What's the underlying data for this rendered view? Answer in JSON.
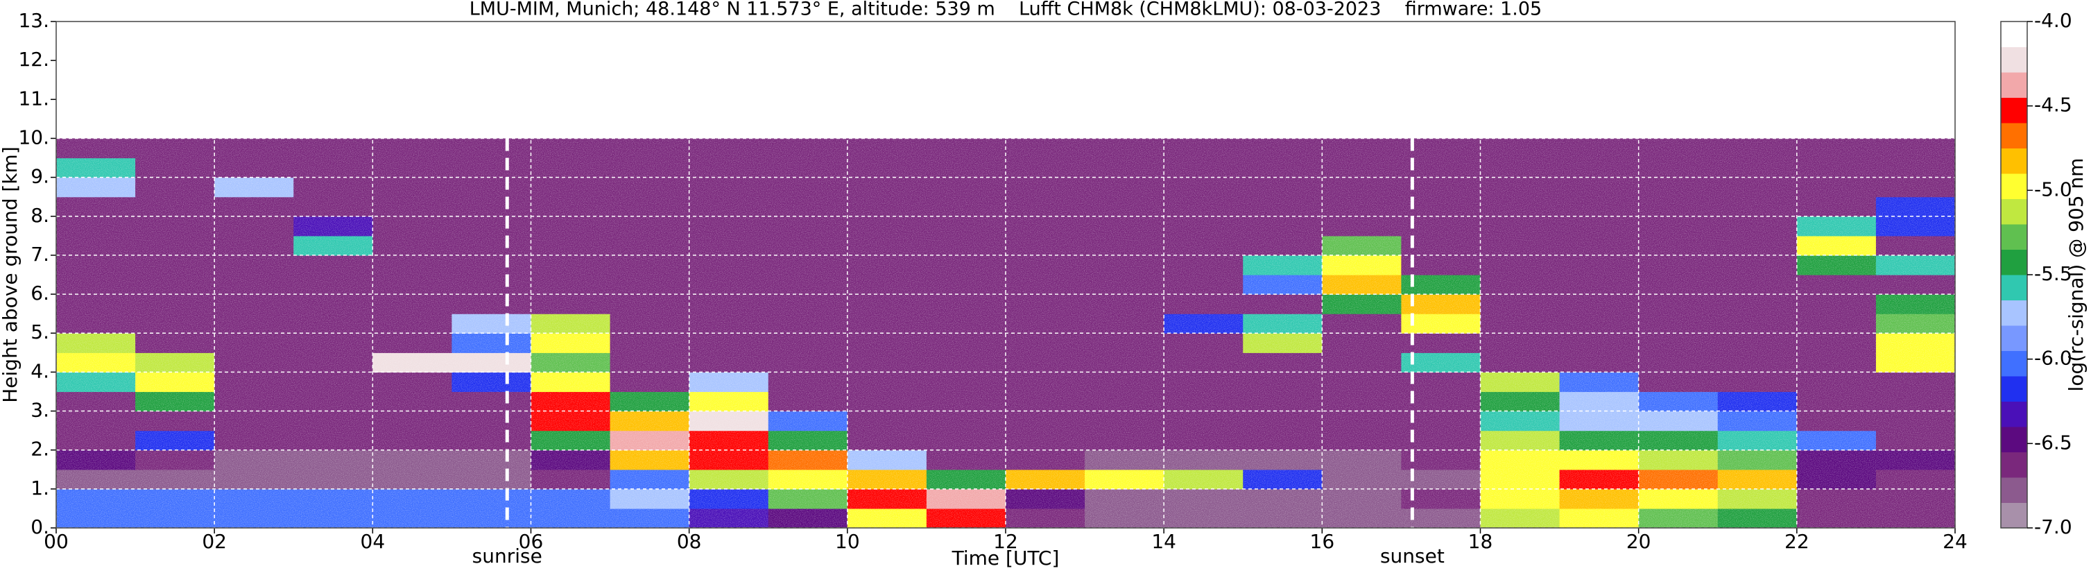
{
  "chart_data": {
    "type": "heatmap",
    "title": "LMU-MIM, Munich; 48.148° N 11.573° E, altitude: 539 m    Lufft CHM8k (CHM8kLMU): 08-03-2023    firmware: 1.05",
    "xlabel": "Time [UTC]",
    "ylabel": "Height above ground [km]",
    "colorbar_label": "log(rc-signal) @ 905 nm",
    "xlim": [
      0,
      24
    ],
    "ylim": [
      0,
      13
    ],
    "xticks": [
      {
        "value": 0,
        "label": "00"
      },
      {
        "value": 2,
        "label": "02"
      },
      {
        "value": 4,
        "label": "04"
      },
      {
        "value": 6,
        "label": "06"
      },
      {
        "value": 8,
        "label": "08"
      },
      10,
      12,
      14,
      16,
      18,
      20,
      22,
      24
    ],
    "yticks": [
      {
        "value": 0,
        "label": "0."
      },
      {
        "value": 1,
        "label": "1."
      },
      {
        "value": 2,
        "label": "2."
      },
      {
        "value": 3,
        "label": "3."
      },
      {
        "value": 4,
        "label": "4."
      },
      {
        "value": 5,
        "label": "5."
      },
      {
        "value": 6,
        "label": "6."
      },
      {
        "value": 7,
        "label": "7."
      },
      {
        "value": 8,
        "label": "8."
      },
      {
        "value": 9,
        "label": "9."
      },
      {
        "value": 10,
        "label": "10."
      },
      {
        "value": 11,
        "label": "11."
      },
      {
        "value": 12,
        "label": "12."
      },
      {
        "value": 13,
        "label": "13."
      }
    ],
    "grid": true,
    "x_edges": [
      0,
      1,
      2,
      3,
      4,
      5,
      6,
      7,
      8,
      9,
      10,
      11,
      12,
      13,
      14,
      15,
      16,
      17,
      18,
      19,
      20,
      21,
      22,
      23,
      24
    ],
    "y_edges": [
      0,
      0.5,
      1,
      1.5,
      2,
      2.5,
      3,
      3.5,
      4,
      4.5,
      5,
      5.5,
      6,
      6.5,
      7,
      7.5,
      8,
      8.5,
      9,
      9.5,
      10
    ],
    "z": [
      [
        -6.0,
        -6.0,
        -6.0,
        -6.0,
        -6.0,
        -6.0,
        -6.0,
        -6.0,
        -6.3,
        -6.4,
        -5.0,
        -4.6,
        -6.6,
        -6.7,
        -6.7,
        -6.7,
        -6.7,
        -6.7,
        -5.2,
        -5.0,
        -5.3,
        -5.5,
        -6.6,
        -6.6
      ],
      [
        -6.1,
        -6.1,
        -6.1,
        -6.1,
        -6.1,
        -6.1,
        -6.1,
        -5.8,
        -6.2,
        -5.3,
        -4.6,
        -4.4,
        -6.5,
        -6.7,
        -6.7,
        -6.7,
        -6.7,
        -6.6,
        -5.0,
        -4.8,
        -5.0,
        -5.2,
        -6.6,
        -6.6
      ],
      [
        -6.8,
        -6.8,
        -6.8,
        -6.8,
        -6.8,
        -6.8,
        -6.6,
        -6.0,
        -5.2,
        -5.0,
        -4.8,
        -5.4,
        -4.8,
        -4.9,
        -5.2,
        -6.2,
        -6.7,
        -6.7,
        -4.9,
        -4.6,
        -4.7,
        -4.8,
        -6.5,
        -6.6
      ],
      [
        -6.5,
        -6.6,
        -6.8,
        -6.8,
        -6.8,
        -6.8,
        -6.5,
        -4.8,
        -4.6,
        -4.7,
        -5.8,
        -6.6,
        -6.6,
        -6.7,
        -6.7,
        -6.7,
        -6.7,
        -6.6,
        -5.0,
        -4.9,
        -5.2,
        -5.3,
        -6.5,
        -6.4
      ],
      [
        -6.6,
        -6.2,
        -6.6,
        -6.6,
        -6.6,
        -6.6,
        -5.5,
        -4.4,
        -4.5,
        -5.5,
        -6.6,
        -6.6,
        -6.6,
        -6.6,
        -6.6,
        -6.6,
        -6.6,
        -6.6,
        -5.2,
        -5.4,
        -5.5,
        -5.6,
        -6.0,
        -6.6
      ],
      [
        -6.6,
        -6.6,
        -6.6,
        -6.6,
        -6.6,
        -6.6,
        -4.6,
        -4.8,
        -4.3,
        -6.0,
        -6.6,
        -6.6,
        -6.6,
        -6.6,
        -6.6,
        -6.6,
        -6.6,
        -6.6,
        -5.6,
        -5.7,
        -5.8,
        -6.0,
        -6.6,
        -6.6
      ],
      [
        -6.6,
        -5.5,
        -6.6,
        -6.6,
        -6.6,
        -6.6,
        -4.5,
        -5.5,
        -5.0,
        -6.6,
        -6.6,
        -6.6,
        -6.6,
        -6.6,
        -6.6,
        -6.6,
        -6.6,
        -6.6,
        -5.4,
        -5.8,
        -6.0,
        -6.2,
        -6.6,
        -6.6
      ],
      [
        -5.6,
        -5.0,
        -6.6,
        -6.6,
        -6.6,
        -6.2,
        -5.0,
        -6.6,
        -5.8,
        -6.6,
        -6.6,
        -6.6,
        -6.6,
        -6.6,
        -6.6,
        -6.6,
        -6.6,
        -6.6,
        -5.2,
        -6.0,
        -6.6,
        -6.6,
        -6.6,
        -6.6
      ],
      [
        -5.0,
        -5.2,
        -6.6,
        -6.6,
        -4.3,
        -4.3,
        -5.3,
        -6.6,
        -6.6,
        -6.6,
        -6.6,
        -6.6,
        -6.6,
        -6.6,
        -6.6,
        -6.6,
        -6.6,
        -5.6,
        -6.6,
        -6.6,
        -6.6,
        -6.6,
        -6.6,
        -5.0
      ],
      [
        -5.2,
        -6.6,
        -6.6,
        -6.6,
        -6.6,
        -6.0,
        -5.0,
        -6.6,
        -6.6,
        -6.6,
        -6.6,
        -6.6,
        -6.6,
        -6.6,
        -6.6,
        -5.2,
        -6.6,
        -6.6,
        -6.6,
        -6.6,
        -6.6,
        -6.6,
        -6.6,
        -5.0
      ],
      [
        -6.6,
        -6.6,
        -6.6,
        -6.6,
        -6.6,
        -5.8,
        -5.2,
        -6.6,
        -6.6,
        -6.6,
        -6.6,
        -6.6,
        -6.6,
        -6.6,
        -6.2,
        -5.6,
        -6.6,
        -5.0,
        -6.6,
        -6.6,
        -6.6,
        -6.6,
        -6.6,
        -5.3
      ],
      [
        -6.6,
        -6.6,
        -6.6,
        -6.6,
        -6.6,
        -6.6,
        -6.6,
        -6.6,
        -6.6,
        -6.6,
        -6.6,
        -6.6,
        -6.6,
        -6.6,
        -6.6,
        -6.6,
        -5.4,
        -4.8,
        -6.6,
        -6.6,
        -6.6,
        -6.6,
        -6.6,
        -5.5
      ],
      [
        -6.6,
        -6.6,
        -6.6,
        -6.6,
        -6.6,
        -6.6,
        -6.6,
        -6.6,
        -6.6,
        -6.6,
        -6.6,
        -6.6,
        -6.6,
        -6.6,
        -6.6,
        -6.0,
        -4.8,
        -5.4,
        -6.6,
        -6.6,
        -6.6,
        -6.6,
        -6.6,
        -6.6
      ],
      [
        -6.6,
        -6.6,
        -6.6,
        -6.6,
        -6.6,
        -6.6,
        -6.6,
        -6.6,
        -6.6,
        -6.6,
        -6.6,
        -6.6,
        -6.6,
        -6.6,
        -6.6,
        -5.6,
        -4.9,
        -6.6,
        -6.6,
        -6.6,
        -6.6,
        -6.6,
        -5.4,
        -5.6
      ],
      [
        -6.6,
        -6.6,
        -6.6,
        -5.6,
        -6.6,
        -6.6,
        -6.6,
        -6.6,
        -6.6,
        -6.6,
        -6.6,
        -6.6,
        -6.6,
        -6.6,
        -6.6,
        -6.6,
        -5.3,
        -6.6,
        -6.6,
        -6.6,
        -6.6,
        -6.6,
        -5.0,
        -6.6
      ],
      [
        -6.6,
        -6.6,
        -6.6,
        -6.3,
        -6.6,
        -6.6,
        -6.6,
        -6.6,
        -6.6,
        -6.6,
        -6.6,
        -6.6,
        -6.6,
        -6.6,
        -6.6,
        -6.6,
        -6.6,
        -6.6,
        -6.6,
        -6.6,
        -6.6,
        -6.6,
        -5.6,
        -6.2
      ],
      [
        -6.6,
        -6.6,
        -6.6,
        -6.6,
        -6.6,
        -6.6,
        -6.6,
        -6.6,
        -6.6,
        -6.6,
        -6.6,
        -6.6,
        -6.6,
        -6.6,
        -6.6,
        -6.6,
        -6.6,
        -6.6,
        -6.6,
        -6.6,
        -6.6,
        -6.6,
        -6.6,
        -6.2
      ],
      [
        -5.8,
        -6.6,
        -5.8,
        -6.6,
        -6.6,
        -6.6,
        -6.6,
        -6.6,
        -6.6,
        -6.6,
        -6.6,
        -6.6,
        -6.6,
        -6.6,
        -6.6,
        -6.6,
        -6.6,
        -6.6,
        -6.6,
        -6.6,
        -6.6,
        -6.6,
        -6.6,
        -6.6
      ],
      [
        -5.6,
        -6.6,
        -6.6,
        -6.6,
        -6.6,
        -6.6,
        -6.6,
        -6.6,
        -6.6,
        -6.6,
        -6.6,
        -6.6,
        -6.6,
        -6.6,
        -6.6,
        -6.6,
        -6.6,
        -6.6,
        -6.6,
        -6.6,
        -6.6,
        -6.6,
        -6.6,
        -6.6
      ],
      [
        -6.6,
        -6.6,
        -6.6,
        -6.6,
        -6.6,
        -6.6,
        -6.6,
        -6.6,
        -6.6,
        -6.6,
        -6.6,
        -6.6,
        -6.6,
        -6.6,
        -6.6,
        -6.6,
        -6.6,
        -6.6,
        -6.6,
        -6.6,
        -6.6,
        -6.6,
        -6.6,
        -6.6
      ]
    ],
    "zlim": [
      -7,
      -4
    ],
    "zticks": [
      {
        "value": -7,
        "label": "-7.0"
      },
      -6.5,
      {
        "value": -6,
        "label": "-6.0"
      },
      -5.5,
      {
        "value": -5,
        "label": "-5.0"
      },
      -4.5,
      {
        "value": -4,
        "label": "-4.0"
      }
    ],
    "colormap": [
      "#a890aa",
      "#8c5a8e",
      "#7a287c",
      "#5c0a80",
      "#4a10b8",
      "#2030f0",
      "#4070ff",
      "#7898ff",
      "#a8c4ff",
      "#30c8b0",
      "#20a040",
      "#60c050",
      "#c0e840",
      "#ffff30",
      "#ffc000",
      "#ff7000",
      "#ff0000",
      "#f2a8aa",
      "#f0e0e2",
      "#ffffff"
    ],
    "annotations": [
      {
        "text": "sunrise",
        "x": 5.7
      },
      {
        "text": "sunset",
        "x": 17.14
      }
    ]
  }
}
